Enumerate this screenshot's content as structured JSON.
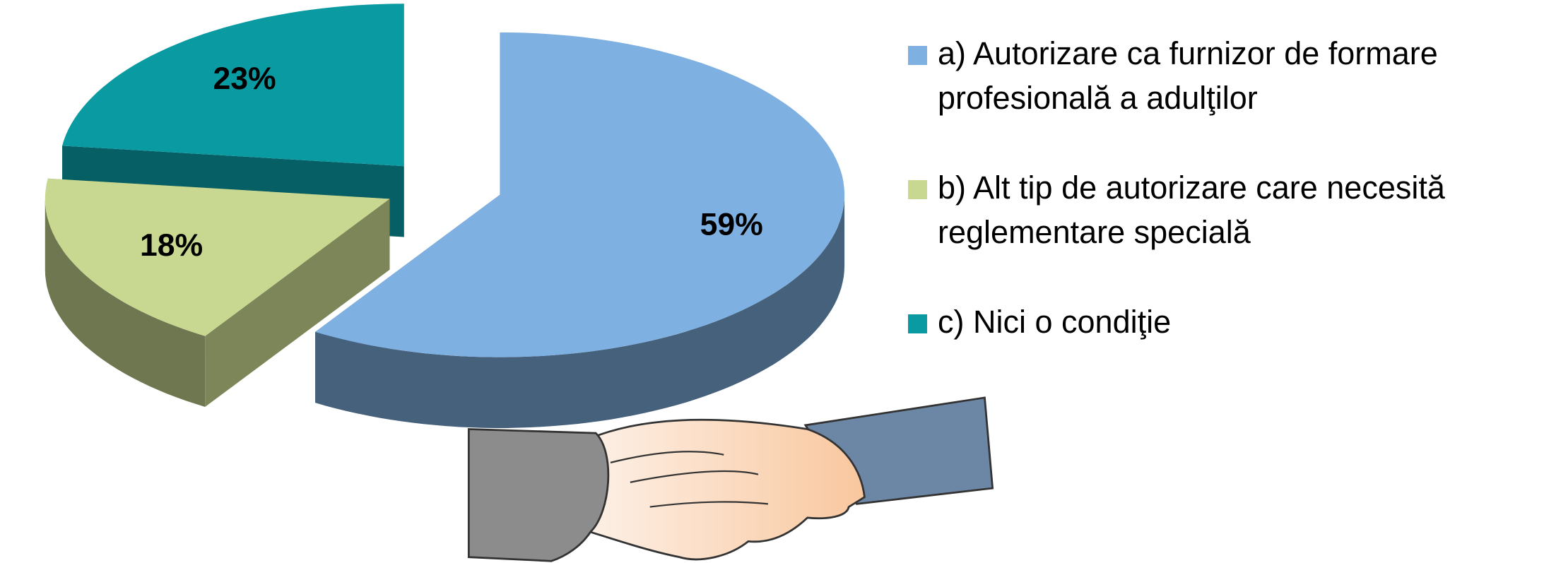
{
  "chart_data": {
    "type": "pie3d",
    "categories": [
      "a) Autorizare ca furnizor de formare profesională a adulţilor",
      "b) Alt tip de autorizare care necesită reglementare specială",
      "c) Nici o condiţie"
    ],
    "values": [
      59,
      18,
      23
    ],
    "value_labels": [
      "59%",
      "18%",
      "23%"
    ],
    "colors": [
      "#7fb0e2",
      "#c8d890",
      "#0a9aa2"
    ],
    "legend": "right"
  }
}
